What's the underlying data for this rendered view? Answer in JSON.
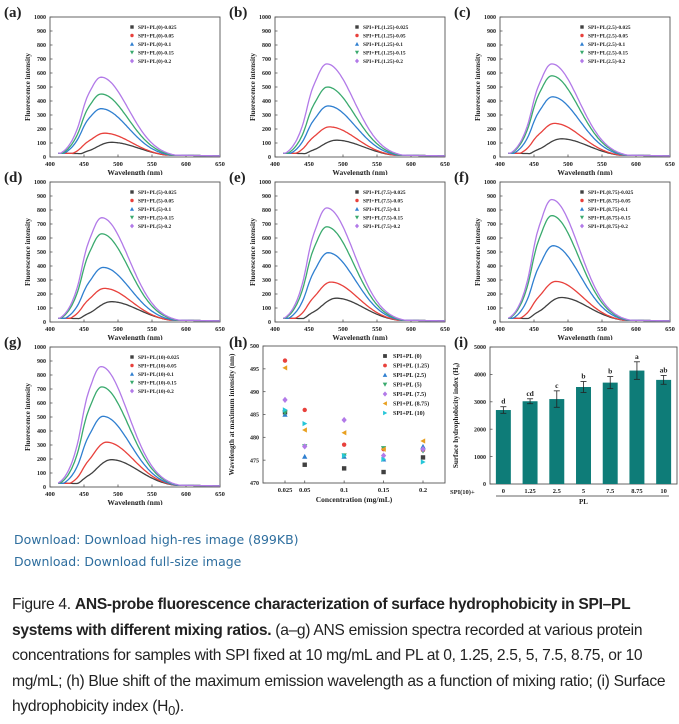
{
  "links": {
    "download_highres": "Download: Download high-res image (899KB)",
    "download_fullsize": "Download: Download full-size image"
  },
  "caption": {
    "figure_label": "Figure 4.",
    "title_bold": "ANS-probe fluorescence characterization of surface hydrophobicity in SPI–PL systems with different mixing ratios.",
    "body_1": " (a–g) ANS emission spectra recorded at various protein concentrations for samples with SPI fixed at 10 mg/mL and PL at 0, 1.25, 2.5, 5, 7.5, 8.75, or 10 mg/mL; (h) Blue shift of the maximum emission wavelength as a function of mixing ratio; (i) Surface hydrophobicity index (H",
    "subscript": "0",
    "body_2": ")."
  },
  "colors": {
    "series": [
      "#404040",
      "#e8413c",
      "#2f7fd0",
      "#3aaa6e",
      "#b27ae8",
      "#e8a020",
      "#26c6d8"
    ],
    "bar": "#0e7c78",
    "link": "#2e6e9e"
  },
  "chart_data": [
    {
      "panel": "(a)",
      "type": "line",
      "xlabel": "Wavelength (nm)",
      "ylabel": "Fluorescence intensity",
      "xlim": [
        400,
        650
      ],
      "ylim": [
        0,
        1000
      ],
      "xticks": [
        400,
        450,
        500,
        550,
        600,
        650
      ],
      "yticks": [
        0,
        100,
        200,
        300,
        400,
        500,
        600,
        700,
        800,
        900,
        1000
      ],
      "legend": "top-right",
      "series": [
        {
          "name": "SPI+PL(0)-0.025",
          "peak_wavelength": 490,
          "peak": 105
        },
        {
          "name": "SPI+PL(0)-0.05",
          "peak_wavelength": 480,
          "peak": 170
        },
        {
          "name": "SPI+PL(0)-0.1",
          "peak_wavelength": 475,
          "peak": 345
        },
        {
          "name": "SPI+PL(0)-0.15",
          "peak_wavelength": 475,
          "peak": 450
        },
        {
          "name": "SPI+PL(0)-0.2",
          "peak_wavelength": 475,
          "peak": 570
        }
      ]
    },
    {
      "panel": "(b)",
      "type": "line",
      "xlabel": "Wavelength (nm)",
      "ylabel": "Fluorescence intensity",
      "xlim": [
        400,
        650
      ],
      "ylim": [
        0,
        1000
      ],
      "xticks": [
        400,
        450,
        500,
        550,
        600,
        650
      ],
      "yticks": [
        0,
        100,
        200,
        300,
        400,
        500,
        600,
        700,
        800,
        900,
        1000
      ],
      "legend": "top-right",
      "series": [
        {
          "name": "SPI+PL(1.25)-0.025",
          "peak_wavelength": 490,
          "peak": 120
        },
        {
          "name": "SPI+PL(1.25)-0.05",
          "peak_wavelength": 480,
          "peak": 215
        },
        {
          "name": "SPI+PL(1.25)-0.1",
          "peak_wavelength": 478,
          "peak": 365
        },
        {
          "name": "SPI+PL(1.25)-0.15",
          "peak_wavelength": 477,
          "peak": 500
        },
        {
          "name": "SPI+PL(1.25)-0.2",
          "peak_wavelength": 476,
          "peak": 665
        }
      ]
    },
    {
      "panel": "(c)",
      "type": "line",
      "xlabel": "Wavelength (nm)",
      "ylabel": "Fluorescence intensity",
      "xlim": [
        400,
        650
      ],
      "ylim": [
        0,
        1000
      ],
      "xticks": [
        400,
        450,
        500,
        550,
        600,
        650
      ],
      "yticks": [
        0,
        100,
        200,
        300,
        400,
        500,
        600,
        700,
        800,
        900,
        1000
      ],
      "legend": "top-right",
      "series": [
        {
          "name": "SPI+PL(2.5)-0.025",
          "peak_wavelength": 490,
          "peak": 130
        },
        {
          "name": "SPI+PL(2.5)-0.05",
          "peak_wavelength": 480,
          "peak": 240
        },
        {
          "name": "SPI+PL(2.5)-0.1",
          "peak_wavelength": 477,
          "peak": 430
        },
        {
          "name": "SPI+PL(2.5)-0.15",
          "peak_wavelength": 476,
          "peak": 580
        },
        {
          "name": "SPI+PL(2.5)-0.2",
          "peak_wavelength": 476,
          "peak": 665
        }
      ]
    },
    {
      "panel": "(d)",
      "type": "line",
      "xlabel": "Wavelength (nm)",
      "ylabel": "Fluorescence intensity",
      "xlim": [
        400,
        650
      ],
      "ylim": [
        0,
        1000
      ],
      "xticks": [
        400,
        450,
        500,
        550,
        600,
        650
      ],
      "yticks": [
        0,
        100,
        200,
        300,
        400,
        500,
        600,
        700,
        800,
        900,
        1000
      ],
      "legend": "top-right",
      "series": [
        {
          "name": "SPI+PL(5)-0.025",
          "peak_wavelength": 490,
          "peak": 145
        },
        {
          "name": "SPI+PL(5)-0.05",
          "peak_wavelength": 480,
          "peak": 240
        },
        {
          "name": "SPI+PL(5)-0.1",
          "peak_wavelength": 478,
          "peak": 390
        },
        {
          "name": "SPI+PL(5)-0.15",
          "peak_wavelength": 476,
          "peak": 630
        },
        {
          "name": "SPI+PL(5)-0.2",
          "peak_wavelength": 476,
          "peak": 745
        }
      ]
    },
    {
      "panel": "(e)",
      "type": "line",
      "xlabel": "Wavelength (nm)",
      "ylabel": "Fluorescence intensity",
      "xlim": [
        400,
        650
      ],
      "ylim": [
        0,
        1000
      ],
      "xticks": [
        400,
        450,
        500,
        550,
        600,
        650
      ],
      "yticks": [
        0,
        100,
        200,
        300,
        400,
        500,
        600,
        700,
        800,
        900,
        1000
      ],
      "legend": "top-right",
      "series": [
        {
          "name": "SPI+PL(7.5)-0.025",
          "peak_wavelength": 490,
          "peak": 170
        },
        {
          "name": "SPI+PL(7.5)-0.05",
          "peak_wavelength": 482,
          "peak": 285
        },
        {
          "name": "SPI+PL(7.5)-0.1",
          "peak_wavelength": 478,
          "peak": 495
        },
        {
          "name": "SPI+PL(7.5)-0.15",
          "peak_wavelength": 476,
          "peak": 680
        },
        {
          "name": "SPI+PL(7.5)-0.2",
          "peak_wavelength": 476,
          "peak": 815
        }
      ]
    },
    {
      "panel": "(f)",
      "type": "line",
      "xlabel": "Wavelength (nm)",
      "ylabel": "Fluorescence intensity",
      "xlim": [
        400,
        650
      ],
      "ylim": [
        0,
        1000
      ],
      "xticks": [
        400,
        450,
        500,
        550,
        600,
        650
      ],
      "yticks": [
        0,
        100,
        200,
        300,
        400,
        500,
        600,
        700,
        800,
        900,
        1000
      ],
      "legend": "top-right",
      "series": [
        {
          "name": "SPI+PL(8.75)-0.025",
          "peak_wavelength": 490,
          "peak": 175
        },
        {
          "name": "SPI+PL(8.75)-0.05",
          "peak_wavelength": 482,
          "peak": 290
        },
        {
          "name": "SPI+PL(8.75)-0.1",
          "peak_wavelength": 478,
          "peak": 545
        },
        {
          "name": "SPI+PL(8.75)-0.15",
          "peak_wavelength": 476,
          "peak": 760
        },
        {
          "name": "SPI+PL(8.75)-0.2",
          "peak_wavelength": 476,
          "peak": 875
        }
      ]
    },
    {
      "panel": "(g)",
      "type": "line",
      "xlabel": "Wavelength (nm)",
      "ylabel": "Fluorescence intensity",
      "xlim": [
        400,
        650
      ],
      "ylim": [
        0,
        1000
      ],
      "xticks": [
        400,
        450,
        500,
        550,
        600,
        650
      ],
      "yticks": [
        0,
        100,
        200,
        300,
        400,
        500,
        600,
        700,
        800,
        900,
        1000
      ],
      "legend": "top-right",
      "series": [
        {
          "name": "SPI+PL(10)-0.025",
          "peak_wavelength": 490,
          "peak": 195
        },
        {
          "name": "SPI+PL(10)-0.05",
          "peak_wavelength": 483,
          "peak": 320
        },
        {
          "name": "SPI+PL(10)-0.1",
          "peak_wavelength": 478,
          "peak": 505
        },
        {
          "name": "SPI+PL(10)-0.15",
          "peak_wavelength": 476,
          "peak": 715
        },
        {
          "name": "SPI+PL(10)-0.2",
          "peak_wavelength": 475,
          "peak": 860
        }
      ]
    },
    {
      "panel": "(h)",
      "type": "scatter",
      "xlabel": "Concentration (mg/mL)",
      "ylabel": "Wavelength at maximum intensity (nm)",
      "x": [
        0.025,
        0.05,
        0.1,
        0.15,
        0.2
      ],
      "xticks": [
        "0.025",
        "0.05",
        "0.1",
        "0.15",
        "0.2"
      ],
      "ylim": [
        470,
        500
      ],
      "yticks": [
        470,
        475,
        480,
        485,
        490,
        495,
        500
      ],
      "legend": "top-right",
      "series": [
        {
          "name": "SPI+PL (0)",
          "marker": "square",
          "values": [
            485.5,
            474,
            473.2,
            472.4,
            475.6
          ]
        },
        {
          "name": "SPI+PL (1.25)",
          "marker": "circle",
          "values": [
            496.8,
            486,
            478.4,
            477.4,
            477.2
          ]
        },
        {
          "name": "SPI+PL (2.5)",
          "marker": "triangle-up",
          "values": [
            485,
            475.8,
            475.8,
            475.2,
            478
          ]
        },
        {
          "name": "SPI+PL (5)",
          "marker": "triangle-down",
          "values": [
            485.4,
            478,
            476,
            477.6,
            477
          ]
        },
        {
          "name": "SPI+PL (7.5)",
          "marker": "diamond",
          "values": [
            488.2,
            478,
            483.8,
            476,
            477.4
          ]
        },
        {
          "name": "SPI+PL (8.75)",
          "marker": "triangle-left",
          "values": [
            495.2,
            481.6,
            481,
            477.4,
            479.2
          ]
        },
        {
          "name": "SPI+PL (10)",
          "marker": "triangle-right",
          "values": [
            486,
            483,
            476,
            475.2,
            474.6
          ]
        }
      ]
    },
    {
      "panel": "(i)",
      "type": "bar",
      "xlabel": "PL",
      "ylabel": "Surface hydrophobicity index (H₀)",
      "x_prefix_label": "SPI(10)+",
      "categories": [
        "0",
        "1.25",
        "2.5",
        "5",
        "7.5",
        "8.75",
        "10"
      ],
      "values": [
        2700,
        3020,
        3100,
        3540,
        3700,
        4140,
        3800
      ],
      "errors": [
        120,
        90,
        300,
        200,
        220,
        320,
        160
      ],
      "significance_labels": [
        "d",
        "cd",
        "c",
        "b",
        "b",
        "a",
        "ab"
      ],
      "ylim": [
        0,
        5000
      ],
      "yticks": [
        0,
        1000,
        2000,
        3000,
        4000,
        5000
      ]
    }
  ]
}
